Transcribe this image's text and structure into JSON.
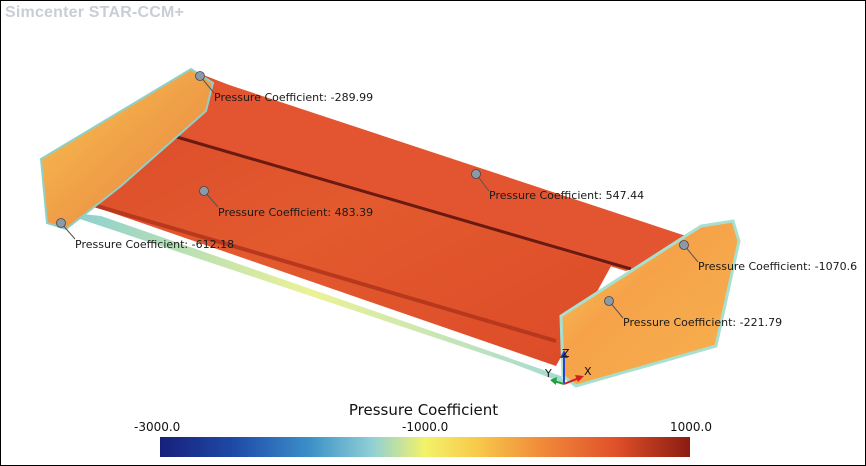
{
  "app": {
    "title": "Simcenter STAR-CCM+"
  },
  "colors": {
    "wing_red": "#e0502a",
    "fin_orange": "#f5a24a",
    "probe_gray": "#8a9aa6"
  },
  "probes": [
    {
      "label": "Pressure Coefficient: -289.99"
    },
    {
      "label": "Pressure Coefficient: 483.39"
    },
    {
      "label": "Pressure Coefficient: 547.44"
    },
    {
      "label": "Pressure Coefficient: -612.18"
    },
    {
      "label": "Pressure Coefficient: -1070.6"
    },
    {
      "label": "Pressure Coefficient: -221.79"
    }
  ],
  "axes_triad": {
    "x": "X",
    "y": "Y",
    "z": "Z"
  },
  "legend": {
    "title": "Pressure Coefficient",
    "min_label": "-3000.0",
    "mid_label": "-1000.0",
    "max_label": "1000.0",
    "min": -3000,
    "mid": -1000,
    "max": 1000
  }
}
